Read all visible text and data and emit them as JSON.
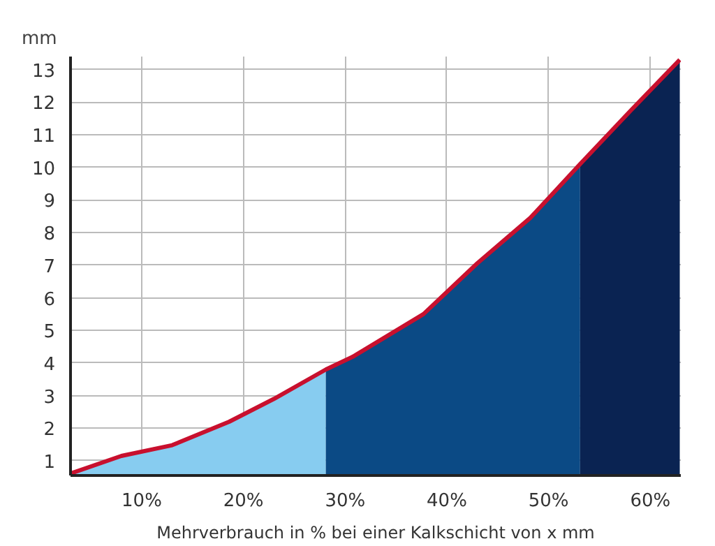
{
  "chart_data": {
    "type": "area",
    "xlabel": "Mehrverbrauch in % bei einer Kalkschicht von x mm",
    "ylabel": "mm",
    "xlim": [
      3,
      63
    ],
    "ylim": [
      0.55,
      13.4
    ],
    "xticks": [
      {
        "value": 10,
        "label": "10%"
      },
      {
        "value": 20,
        "label": "20%"
      },
      {
        "value": 30,
        "label": "30%"
      },
      {
        "value": 40,
        "label": "40%"
      },
      {
        "value": 50,
        "label": "50%"
      },
      {
        "value": 60,
        "label": "60%"
      }
    ],
    "yticks": [
      1,
      2,
      3,
      4,
      5,
      6,
      7,
      8,
      9,
      10,
      11,
      12,
      13
    ],
    "grid": true,
    "series": [
      {
        "color": "#87ccf0",
        "x": [
          3,
          8,
          13,
          18.6,
          23,
          28.1
        ],
        "values": [
          0.61,
          1.15,
          1.48,
          2.2,
          2.9,
          3.8
        ]
      },
      {
        "color": "#0b4a85",
        "x": [
          28.1,
          30.8,
          37.7,
          43,
          48.2,
          53.1
        ],
        "values": [
          3.8,
          4.2,
          5.5,
          7.06,
          8.45,
          10.1
        ]
      },
      {
        "color": "#0a2352",
        "x": [
          53.1,
          58.1,
          62.9
        ],
        "values": [
          10.1,
          11.75,
          13.3
        ]
      },
      {
        "type": "line",
        "color": "#c8102e",
        "x": [
          3,
          8,
          13,
          18.6,
          23,
          28.1,
          30.8,
          37.7,
          43,
          48.2,
          53.1,
          58.1,
          62.9
        ],
        "values": [
          0.61,
          1.15,
          1.48,
          2.2,
          2.9,
          3.8,
          4.2,
          5.5,
          7.06,
          8.45,
          10.1,
          11.75,
          13.3
        ]
      }
    ]
  }
}
